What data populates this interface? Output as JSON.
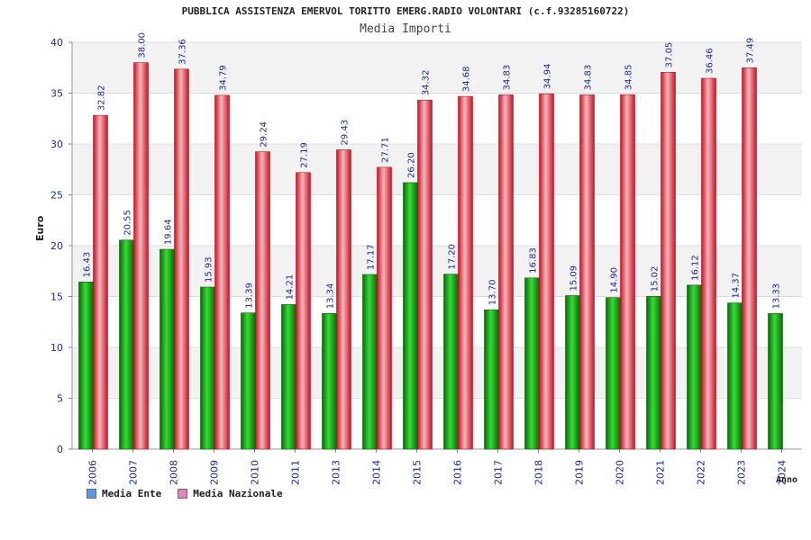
{
  "chart_data": {
    "type": "bar",
    "title": "PUBBLICA ASSISTENZA EMERVOL TORITTO EMERG.RADIO VOLONTARI (c.f.93285160722)",
    "subtitle": "Media Importi",
    "ylabel": "Euro",
    "xlabel": "Anno",
    "ylim": [
      0,
      40
    ],
    "yticks": [
      0,
      5,
      10,
      15,
      20,
      25,
      30,
      35,
      40
    ],
    "grid": true,
    "legend_position": "bottom-left",
    "categories": [
      "2006",
      "2007",
      "2008",
      "2009",
      "2010",
      "2011",
      "2013",
      "2014",
      "2015",
      "2016",
      "2017",
      "2018",
      "2019",
      "2020",
      "2021",
      "2022",
      "2023",
      "2024"
    ],
    "series": [
      {
        "name": "Media Ente",
        "color": "#22bb22",
        "legend_color": "#5599ee",
        "values": [
          16.43,
          20.55,
          19.64,
          15.93,
          13.39,
          14.21,
          13.34,
          17.17,
          26.2,
          17.2,
          13.7,
          16.83,
          15.09,
          14.9,
          15.02,
          16.12,
          14.37,
          13.33
        ],
        "labels": [
          "16.43",
          "20.55",
          "19.64",
          "15.93",
          "13.39",
          "14.21",
          "13.34",
          "17.17",
          "26.20",
          "17.20",
          "13.70",
          "16.83",
          "15.09",
          "14.90",
          "15.02",
          "16.12",
          "14.37",
          "13.33"
        ]
      },
      {
        "name": "Media Nazionale",
        "color": "#ee2233",
        "legend_color": "#dd88bb",
        "values": [
          32.82,
          38.0,
          37.36,
          34.79,
          29.24,
          27.19,
          29.43,
          27.71,
          34.32,
          34.68,
          34.83,
          34.94,
          34.83,
          34.85,
          37.05,
          36.46,
          37.49,
          null
        ],
        "labels": [
          "32.82",
          "38.00",
          "37.36",
          "34.79",
          "29.24",
          "27.19",
          "29.43",
          "27.71",
          "34.32",
          "34.68",
          "34.83",
          "34.94",
          "34.83",
          "34.85",
          "37.05",
          "36.46",
          "37.49",
          null
        ]
      }
    ]
  }
}
